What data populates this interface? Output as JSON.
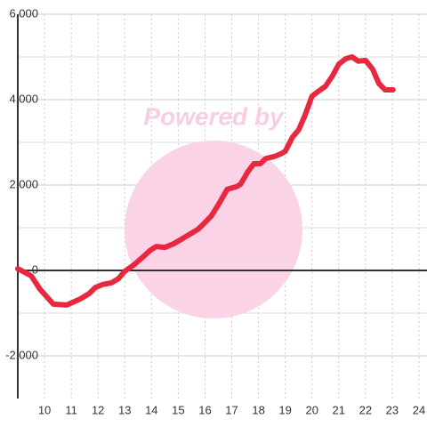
{
  "chart_data": {
    "type": "line",
    "watermark": "Powered by",
    "x": [
      9.0,
      9.5,
      9.83,
      10.33,
      10.83,
      11.33,
      11.67,
      11.9,
      12.17,
      12.5,
      12.77,
      13.0,
      13.33,
      13.67,
      13.93,
      14.17,
      14.5,
      14.83,
      15.17,
      15.5,
      15.73,
      15.93,
      16.23,
      16.5,
      16.83,
      17.17,
      17.33,
      17.6,
      17.83,
      18.07,
      18.27,
      18.6,
      18.83,
      19.0,
      19.27,
      19.5,
      19.73,
      20.0,
      20.27,
      20.5,
      20.77,
      21.0,
      21.27,
      21.5,
      21.73,
      22.0,
      22.27,
      22.5,
      22.73,
      23.03
    ],
    "values": [
      40,
      -125,
      -440,
      -790,
      -810,
      -670,
      -540,
      -400,
      -330,
      -290,
      -190,
      -20,
      125,
      310,
      460,
      560,
      540,
      625,
      750,
      875,
      960,
      1080,
      1270,
      1540,
      1900,
      1960,
      2020,
      2310,
      2500,
      2500,
      2620,
      2670,
      2730,
      2790,
      3120,
      3290,
      3620,
      4080,
      4210,
      4310,
      4560,
      4830,
      4960,
      5000,
      4900,
      4920,
      4710,
      4380,
      4230,
      4230
    ],
    "color": "#e8283f",
    "xlim": [
      9,
      24.3
    ],
    "xticks": [
      10,
      11,
      12,
      13,
      14,
      15,
      16,
      17,
      18,
      19,
      20,
      21,
      22,
      23,
      24
    ],
    "ylim": [
      -3000,
      6000
    ],
    "yticks": [
      {
        "value": -2000,
        "label": "-2,000"
      },
      0,
      {
        "value": 2000,
        "label": "2,000"
      },
      {
        "value": 4000,
        "label": "4,000"
      },
      {
        "value": 6000,
        "label": "6,000"
      }
    ],
    "minor_yticks": [
      -1000,
      1000,
      3000,
      5000
    ],
    "grid": true
  }
}
